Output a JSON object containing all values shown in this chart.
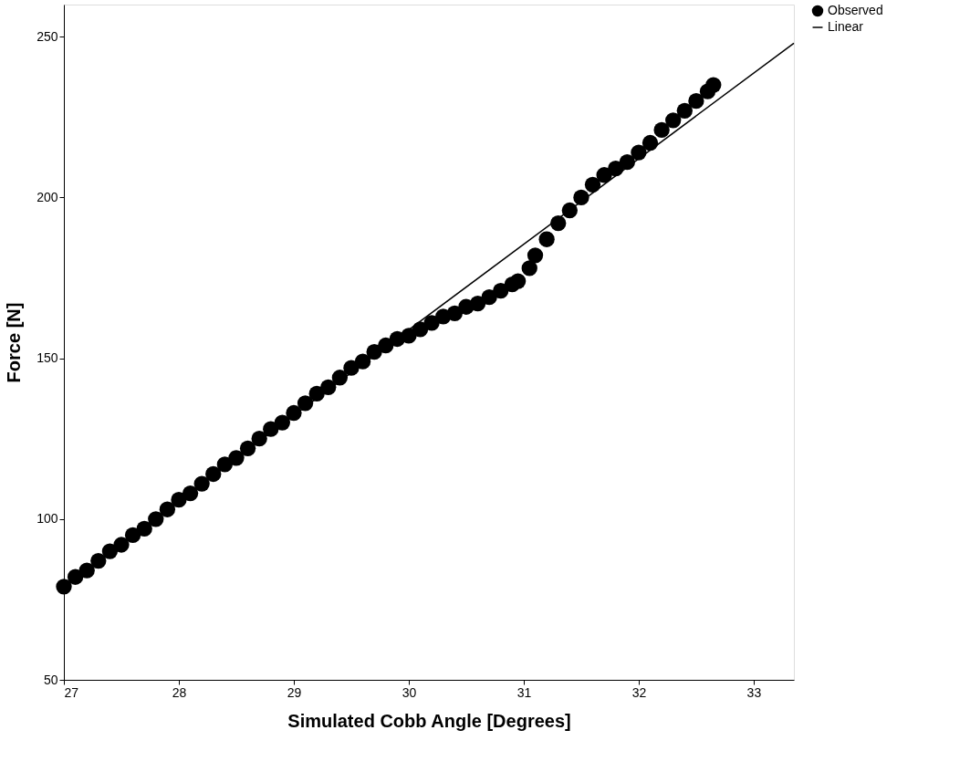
{
  "chart_data": {
    "type": "scatter",
    "xlabel": "Simulated Cobb Angle [Degrees]",
    "ylabel": "Force [N]",
    "xlim": [
      27,
      33.35
    ],
    "xticks": [
      27,
      28,
      29,
      30,
      31,
      32,
      33
    ],
    "ylim": [
      50,
      260
    ],
    "yticks": [
      50,
      100,
      150,
      200,
      250
    ],
    "grid": false,
    "legend": "top right",
    "series": [
      {
        "name": "Observed",
        "color": "#000000",
        "marker": "circle",
        "x": [
          27.0,
          27.1,
          27.2,
          27.3,
          27.4,
          27.5,
          27.6,
          27.7,
          27.8,
          27.9,
          28.0,
          28.1,
          28.2,
          28.3,
          28.4,
          28.5,
          28.6,
          28.7,
          28.8,
          28.9,
          29.0,
          29.1,
          29.2,
          29.3,
          29.4,
          29.5,
          29.6,
          29.7,
          29.8,
          29.9,
          30.0,
          30.1,
          30.2,
          30.3,
          30.4,
          30.5,
          30.6,
          30.7,
          30.8,
          30.9,
          30.95,
          31.05,
          31.1,
          31.2,
          31.3,
          31.4,
          31.5,
          31.6,
          31.7,
          31.8,
          31.9,
          32.0,
          32.1,
          32.2,
          32.3,
          32.4,
          32.5,
          32.6,
          32.65
        ],
        "values": [
          79,
          82,
          84,
          87,
          90,
          92,
          95,
          97,
          100,
          103,
          106,
          108,
          111,
          114,
          117,
          119,
          122,
          125,
          128,
          130,
          133,
          136,
          139,
          141,
          144,
          147,
          149,
          152,
          154,
          156,
          157,
          159,
          161,
          163,
          164,
          166,
          167,
          169,
          171,
          173,
          174,
          178,
          182,
          187,
          192,
          196,
          200,
          204,
          207,
          209,
          211,
          214,
          217,
          221,
          224,
          227,
          230,
          233,
          235
        ]
      },
      {
        "name": "Linear",
        "type": "line",
        "color": "#000000",
        "marker": "none",
        "x": [
          27.0,
          33.35
        ],
        "values": [
          79,
          248
        ]
      }
    ]
  }
}
